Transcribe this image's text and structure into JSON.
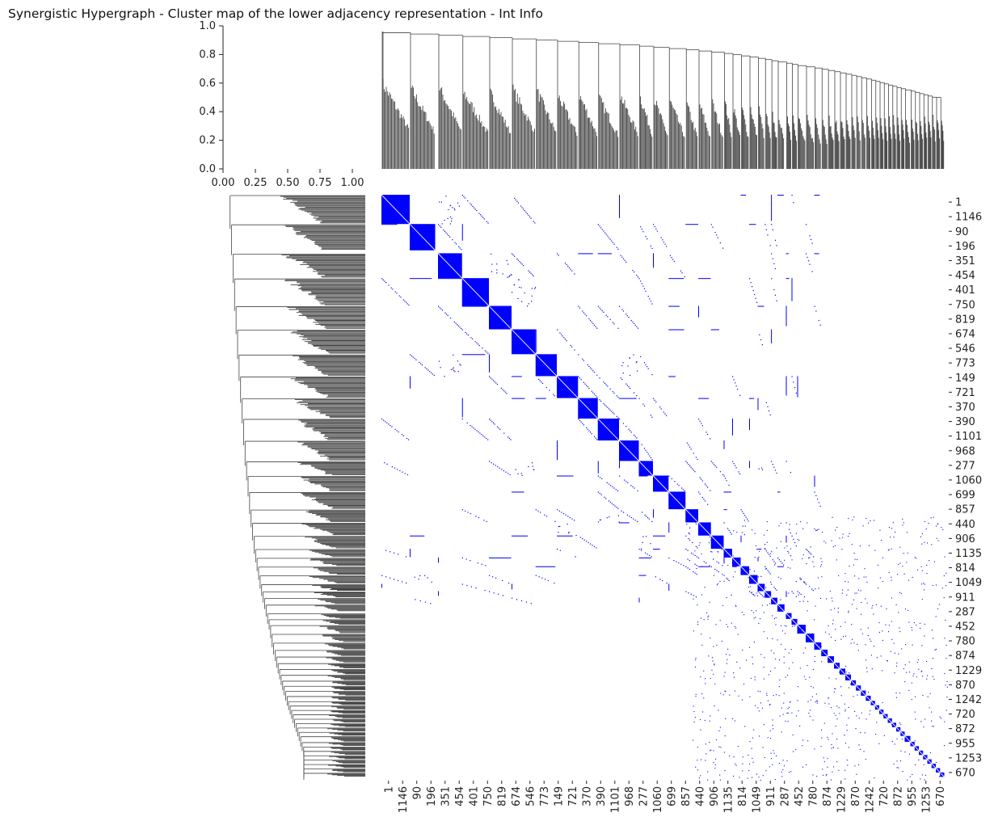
{
  "title": "Synergistic Hypergraph - Cluster map of the lower adjacency representation - Int Info",
  "colors": {
    "cell": "#0000ff",
    "dendrogram": "#444444",
    "background": "#ffffff",
    "axis": "#222222"
  },
  "chart_data": [
    {
      "type": "line",
      "role": "column-dendrogram",
      "yticks": [
        "0.0",
        "0.2",
        "0.4",
        "0.6",
        "0.8",
        "1.0"
      ],
      "ylim": [
        0.0,
        1.0
      ],
      "yaxis_spine": true
    },
    {
      "type": "line",
      "role": "dendrogram-ticks",
      "xticks": [
        "0.00",
        "0.25",
        "0.50",
        "0.75",
        "1.00"
      ],
      "xlim": [
        0.0,
        1.1
      ]
    },
    {
      "type": "heatmap",
      "role": "lower-adjacency-cluster-map",
      "colormap": [
        "#ffffff",
        "#0000ff"
      ],
      "ticklabels": [
        "1",
        "1146",
        "90",
        "196",
        "351",
        "454",
        "401",
        "750",
        "819",
        "674",
        "546",
        "773",
        "149",
        "721",
        "370",
        "390",
        "1101",
        "968",
        "277",
        "1060",
        "699",
        "857",
        "440",
        "906",
        "1135",
        "814",
        "1049",
        "911",
        "287",
        "452",
        "780",
        "874",
        "1229",
        "870",
        "1242",
        "720",
        "872",
        "955",
        "1253",
        "670"
      ],
      "cluster_blocks": [
        {
          "start_tick": 0,
          "size_ticks": 2.0
        },
        {
          "start_tick": 2,
          "size_ticks": 1.8
        },
        {
          "start_tick": 4,
          "size_ticks": 1.7
        },
        {
          "start_tick": 5.7,
          "size_ticks": 1.9
        },
        {
          "start_tick": 7.6,
          "size_ticks": 1.6
        },
        {
          "start_tick": 9.2,
          "size_ticks": 1.7
        },
        {
          "start_tick": 10.9,
          "size_ticks": 1.5
        },
        {
          "start_tick": 12.4,
          "size_ticks": 1.5
        },
        {
          "start_tick": 13.9,
          "size_ticks": 1.4
        },
        {
          "start_tick": 15.3,
          "size_ticks": 1.5
        },
        {
          "start_tick": 16.8,
          "size_ticks": 1.4
        },
        {
          "start_tick": 18.2,
          "size_ticks": 1.0
        },
        {
          "start_tick": 19.2,
          "size_ticks": 1.1
        },
        {
          "start_tick": 20.3,
          "size_ticks": 1.2
        },
        {
          "start_tick": 21.5,
          "size_ticks": 0.9
        },
        {
          "start_tick": 22.4,
          "size_ticks": 0.9
        },
        {
          "start_tick": 23.3,
          "size_ticks": 0.9
        },
        {
          "start_tick": 24.2,
          "size_ticks": 0.6
        },
        {
          "start_tick": 24.8,
          "size_ticks": 0.6
        },
        {
          "start_tick": 25.4,
          "size_ticks": 0.6
        },
        {
          "start_tick": 26.0,
          "size_ticks": 0.6
        },
        {
          "start_tick": 26.6,
          "size_ticks": 0.5
        },
        {
          "start_tick": 27.1,
          "size_ticks": 0.45
        },
        {
          "start_tick": 27.55,
          "size_ticks": 0.45
        },
        {
          "start_tick": 28.0,
          "size_ticks": 0.5
        },
        {
          "start_tick": 28.6,
          "size_ticks": 0.4
        },
        {
          "start_tick": 29.0,
          "size_ticks": 0.4
        },
        {
          "start_tick": 29.4,
          "size_ticks": 0.6
        },
        {
          "start_tick": 30.0,
          "size_ticks": 0.6
        },
        {
          "start_tick": 30.6,
          "size_ticks": 0.5
        },
        {
          "start_tick": 31.1,
          "size_ticks": 0.45
        },
        {
          "start_tick": 31.55,
          "size_ticks": 0.45
        },
        {
          "start_tick": 32.0,
          "size_ticks": 0.4
        },
        {
          "start_tick": 32.4,
          "size_ticks": 0.4
        },
        {
          "start_tick": 32.8,
          "size_ticks": 0.4
        },
        {
          "start_tick": 33.2,
          "size_ticks": 0.35
        },
        {
          "start_tick": 33.55,
          "size_ticks": 0.35
        },
        {
          "start_tick": 33.9,
          "size_ticks": 0.35
        },
        {
          "start_tick": 34.25,
          "size_ticks": 0.35
        },
        {
          "start_tick": 34.6,
          "size_ticks": 0.3
        },
        {
          "start_tick": 34.9,
          "size_ticks": 0.3
        },
        {
          "start_tick": 35.2,
          "size_ticks": 0.3
        },
        {
          "start_tick": 35.5,
          "size_ticks": 0.3
        },
        {
          "start_tick": 35.8,
          "size_ticks": 0.3
        },
        {
          "start_tick": 36.1,
          "size_ticks": 0.3
        },
        {
          "start_tick": 36.4,
          "size_ticks": 0.3
        },
        {
          "start_tick": 36.7,
          "size_ticks": 0.3
        },
        {
          "start_tick": 37.0,
          "size_ticks": 0.4
        },
        {
          "start_tick": 37.4,
          "size_ticks": 0.3
        },
        {
          "start_tick": 37.7,
          "size_ticks": 0.3
        },
        {
          "start_tick": 38.0,
          "size_ticks": 0.3
        },
        {
          "start_tick": 38.3,
          "size_ticks": 0.3
        },
        {
          "start_tick": 38.6,
          "size_ticks": 0.3
        },
        {
          "start_tick": 38.9,
          "size_ticks": 0.3
        },
        {
          "start_tick": 39.2,
          "size_ticks": 0.3
        },
        {
          "start_tick": 39.5,
          "size_ticks": 0.3
        }
      ]
    }
  ]
}
